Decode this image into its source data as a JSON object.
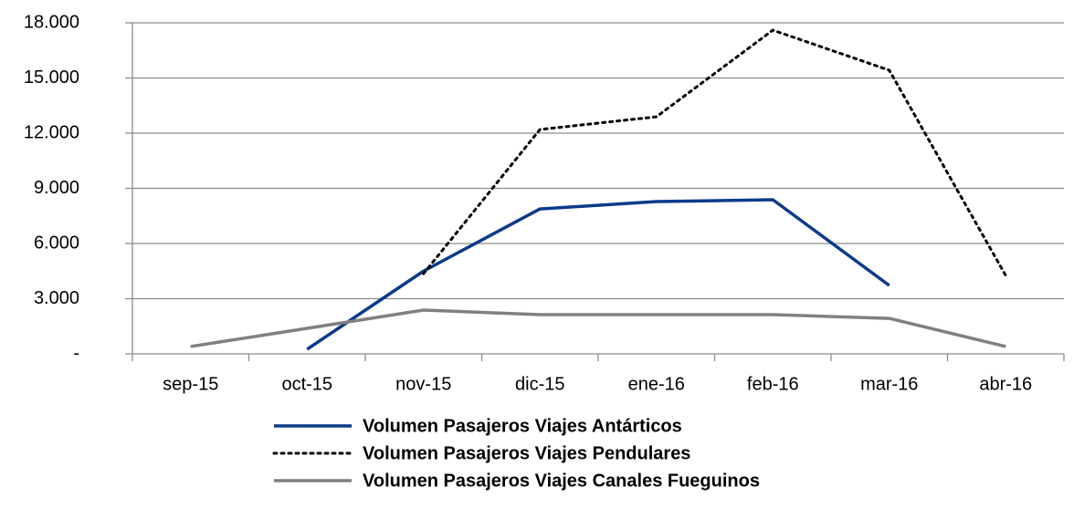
{
  "chart_data": {
    "type": "line",
    "categories": [
      "sep-15",
      "oct-15",
      "nov-15",
      "dic-15",
      "ene-16",
      "feb-16",
      "mar-16",
      "abr-16"
    ],
    "series": [
      {
        "name": "Volumen Pasajeros Viajes Antárticos",
        "color": "#0b3a8a",
        "style": "solid",
        "values": [
          null,
          250,
          4500,
          7880,
          8280,
          8380,
          3720,
          null
        ]
      },
      {
        "name": "Volumen Pasajeros Viajes Pendulares",
        "color": "#000000",
        "style": "dotted",
        "values": [
          null,
          null,
          4360,
          12200,
          12890,
          17600,
          15420,
          4260
        ]
      },
      {
        "name": "Volumen Pasajeros Viajes Canales Fueguinos",
        "color": "#808080",
        "style": "solid",
        "values": [
          400,
          1390,
          2380,
          2130,
          2130,
          2130,
          1930,
          400
        ]
      }
    ],
    "ylim": [
      0,
      18000
    ],
    "yticks": [
      {
        "value": 0,
        "label": "-"
      },
      {
        "value": 3000,
        "label": "3.000"
      },
      {
        "value": 6000,
        "label": "6.000"
      },
      {
        "value": 9000,
        "label": "9.000"
      },
      {
        "value": 12000,
        "label": "12.000"
      },
      {
        "value": 15000,
        "label": "15.000"
      },
      {
        "value": 18000,
        "label": "18.000"
      }
    ],
    "grid": true,
    "legend": "bottom"
  }
}
